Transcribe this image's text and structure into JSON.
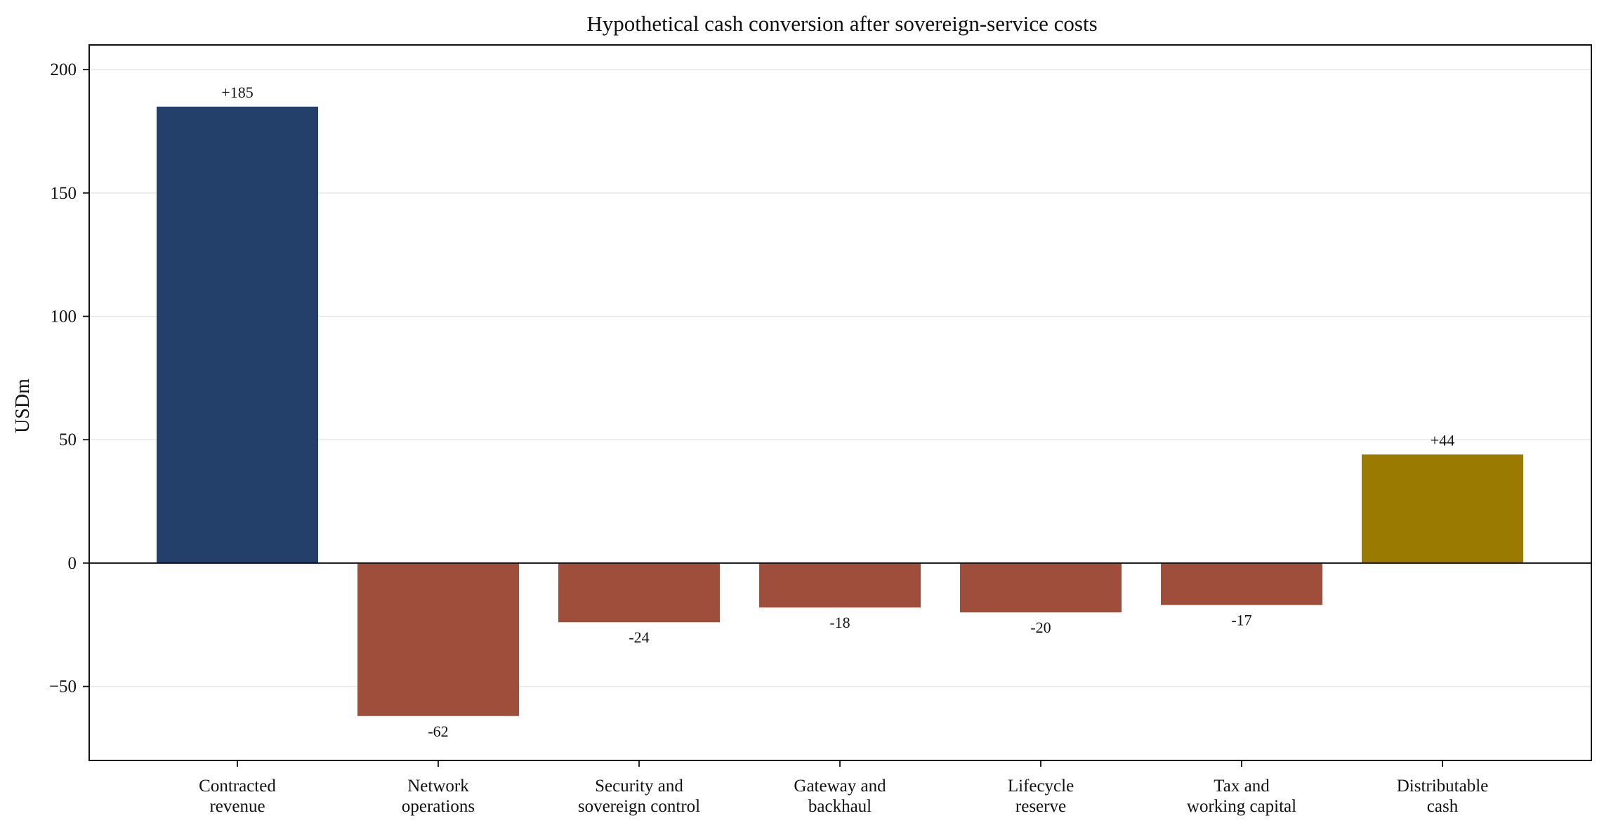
{
  "chart_data": {
    "type": "bar",
    "title": "Hypothetical cash conversion after sovereign-service costs",
    "xlabel": "",
    "ylabel": "USDm",
    "ylim": [
      -80,
      210
    ],
    "yticks": [
      -50,
      0,
      50,
      100,
      150,
      200
    ],
    "ytick_labels": [
      "−50",
      "0",
      "50",
      "100",
      "150",
      "200"
    ],
    "grid": "y",
    "legend": "none",
    "categories": [
      [
        "Contracted",
        "revenue"
      ],
      [
        "Network",
        "operations"
      ],
      [
        "Security and",
        "sovereign control"
      ],
      [
        "Gateway and",
        "backhaul"
      ],
      [
        "Lifecycle",
        "reserve"
      ],
      [
        "Tax and",
        "working capital"
      ],
      [
        "Distributable",
        "cash"
      ]
    ],
    "values": [
      185,
      -62,
      -24,
      -18,
      -20,
      -17,
      44
    ],
    "value_labels": [
      "+185",
      "-62",
      "-24",
      "-18",
      "-20",
      "-17",
      "+44"
    ],
    "bar_colors": [
      "#22406a",
      "#a04e3c",
      "#a04e3c",
      "#a04e3c",
      "#a04e3c",
      "#a04e3c",
      "#9a7b00"
    ],
    "grid_color": "#e8e8e8",
    "axis_color": "#111111"
  }
}
